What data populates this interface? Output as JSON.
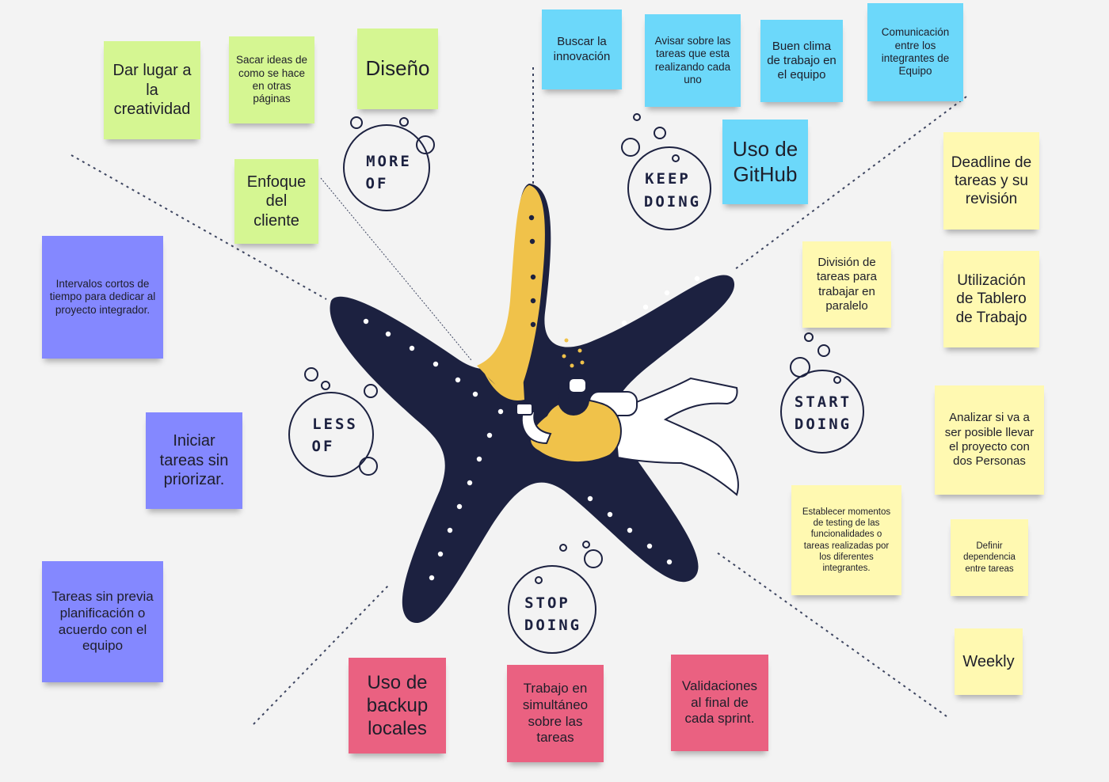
{
  "sections": {
    "more_of": {
      "line1": "MORE",
      "line2": "OF"
    },
    "keep_doing": {
      "line1": "KEEP",
      "line2": "DOING"
    },
    "start_doing": {
      "line1": "START",
      "line2": "DOING"
    },
    "stop_doing": {
      "line1": "STOP",
      "line2": "DOING"
    },
    "less_of": {
      "line1": "LESS",
      "line2": "OF"
    }
  },
  "notes": {
    "more_of": [
      "Dar lugar a la creatividad",
      "Sacar ideas de como se hace en otras páginas",
      "Diseño",
      "Enfoque del cliente"
    ],
    "keep_doing": [
      "Buscar la innovación",
      "Avisar sobre las tareas que esta realizando cada uno",
      "Buen clima de trabajo en el equipo",
      "Comunicación entre los integrantes de Equipo",
      "Uso de GitHub"
    ],
    "start_doing": [
      "Deadline de tareas y su revisión",
      "División de tareas para trabajar en paralelo",
      "Utilización de Tablero de Trabajo",
      "Analizar si va a ser posible llevar el proyecto con dos Personas",
      "Establecer momentos de testing de las funcionalidades o tareas realizadas por los diferentes integrantes.",
      "Definir dependencia entre tareas",
      "Weekly"
    ],
    "stop_doing": [
      "Uso de backup locales",
      "Trabajo en simultáneo sobre las tareas",
      "Validaciones al final de cada sprint."
    ],
    "less_of": [
      "Intervalos cortos de tiempo para dedicar al proyecto integrador.",
      "Iniciar tareas sin priorizar.",
      "Tareas sin previa planificación o acuerdo con el equipo"
    ]
  },
  "colors": {
    "more_of": "#d5f692",
    "keep_doing": "#6cd8fa",
    "start_doing": "#fff9b1",
    "stop_doing": "#ea6181",
    "less_of": "#8488ff",
    "starfish": "#1c2140",
    "starfish_accent": "#f0c24a"
  }
}
